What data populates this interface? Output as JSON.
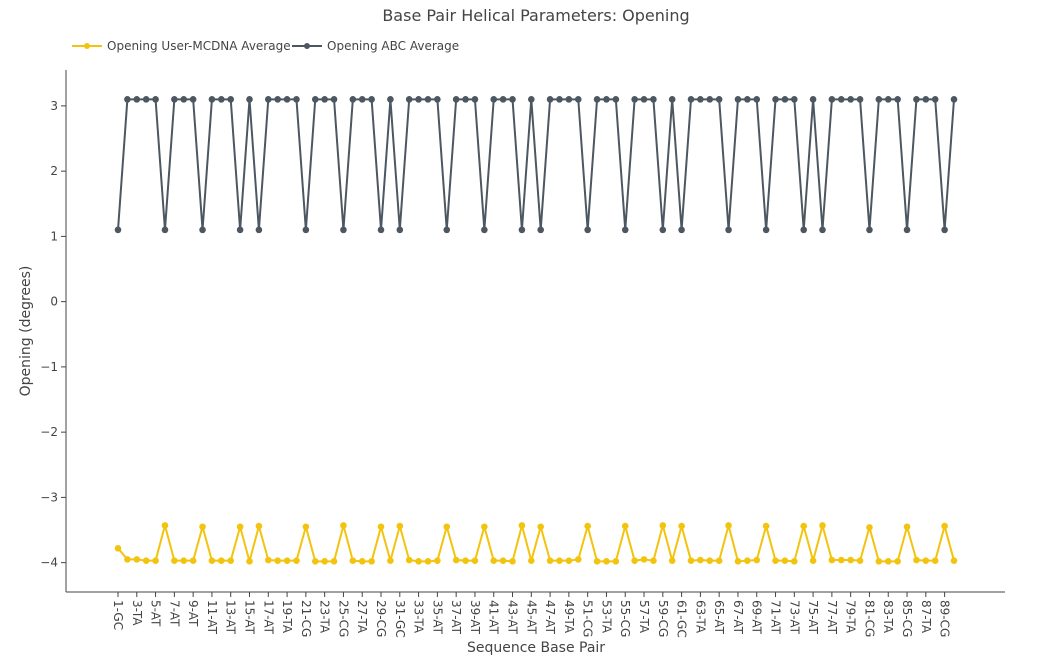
{
  "chart_data": {
    "type": "line",
    "title": "Base Pair Helical Parameters: Opening",
    "xlabel": "Sequence Base Pair",
    "ylabel": "Opening (degrees)",
    "ylim": [
      -4.45,
      3.55
    ],
    "yticks": [
      3,
      2,
      1,
      0,
      -1,
      -2,
      -3,
      -4
    ],
    "ytick_labels": [
      "3",
      "2",
      "1",
      "0",
      "−1",
      "−2",
      "−3",
      "−4"
    ],
    "grid": false,
    "legend_position": "top-left",
    "x_tick_labels": [
      "1-GC",
      "3-TA",
      "5-AT",
      "7-AT",
      "9-AT",
      "11-AT",
      "13-AT",
      "15-AT",
      "17-AT",
      "19-TA",
      "21-CG",
      "23-TA",
      "25-CG",
      "27-TA",
      "29-CG",
      "31-GC",
      "33-TA",
      "35-AT",
      "37-AT",
      "39-AT",
      "41-AT",
      "43-AT",
      "45-AT",
      "47-AT",
      "49-TA",
      "51-CG",
      "53-TA",
      "55-CG",
      "57-TA",
      "59-CG",
      "61-GC",
      "63-TA",
      "65-AT",
      "67-AT",
      "69-AT",
      "71-AT",
      "73-AT",
      "75-AT",
      "77-AT",
      "79-TA",
      "81-CG",
      "83-TA",
      "85-CG",
      "87-TA",
      "89-CG"
    ],
    "series": [
      {
        "name": "Opening User-MCDNA Average",
        "color": "#f2c40f",
        "values": [
          -3.78,
          -3.95,
          -3.95,
          -3.97,
          -3.97,
          -3.43,
          -3.97,
          -3.97,
          -3.97,
          -3.45,
          -3.97,
          -3.97,
          -3.97,
          -3.45,
          -3.98,
          -3.44,
          -3.96,
          -3.97,
          -3.97,
          -3.97,
          -3.45,
          -3.98,
          -3.98,
          -3.98,
          -3.43,
          -3.97,
          -3.98,
          -3.98,
          -3.45,
          -3.97,
          -3.44,
          -3.96,
          -3.98,
          -3.98,
          -3.97,
          -3.45,
          -3.96,
          -3.97,
          -3.97,
          -3.45,
          -3.97,
          -3.97,
          -3.98,
          -3.43,
          -3.97,
          -3.45,
          -3.97,
          -3.97,
          -3.97,
          -3.95,
          -3.44,
          -3.98,
          -3.98,
          -3.98,
          -3.44,
          -3.97,
          -3.95,
          -3.97,
          -3.43,
          -3.97,
          -3.44,
          -3.97,
          -3.96,
          -3.97,
          -3.97,
          -3.43,
          -3.98,
          -3.97,
          -3.96,
          -3.44,
          -3.97,
          -3.97,
          -3.98,
          -3.44,
          -3.97,
          -3.43,
          -3.96,
          -3.96,
          -3.96,
          -3.97,
          -3.46,
          -3.98,
          -3.98,
          -3.98,
          -3.45,
          -3.96,
          -3.97,
          -3.97,
          -3.44,
          -3.97
        ]
      },
      {
        "name": "Opening ABC Average",
        "color": "#4d5762",
        "values": [
          1.1,
          3.1,
          3.1,
          3.1,
          3.1,
          1.1,
          3.1,
          3.1,
          3.1,
          1.1,
          3.1,
          3.1,
          3.1,
          1.1,
          3.1,
          1.1,
          3.1,
          3.1,
          3.1,
          3.1,
          1.1,
          3.1,
          3.1,
          3.1,
          1.1,
          3.1,
          3.1,
          3.1,
          1.1,
          3.1,
          1.1,
          3.1,
          3.1,
          3.1,
          3.1,
          1.1,
          3.1,
          3.1,
          3.1,
          1.1,
          3.1,
          3.1,
          3.1,
          1.1,
          3.1,
          1.1,
          3.1,
          3.1,
          3.1,
          3.1,
          1.1,
          3.1,
          3.1,
          3.1,
          1.1,
          3.1,
          3.1,
          3.1,
          1.1,
          3.1,
          1.1,
          3.1,
          3.1,
          3.1,
          3.1,
          1.1,
          3.1,
          3.1,
          3.1,
          1.1,
          3.1,
          3.1,
          3.1,
          1.1,
          3.1,
          1.1,
          3.1,
          3.1,
          3.1,
          3.1,
          1.1,
          3.1,
          3.1,
          3.1,
          1.1,
          3.1,
          3.1,
          3.1,
          1.1,
          3.1
        ]
      }
    ]
  }
}
